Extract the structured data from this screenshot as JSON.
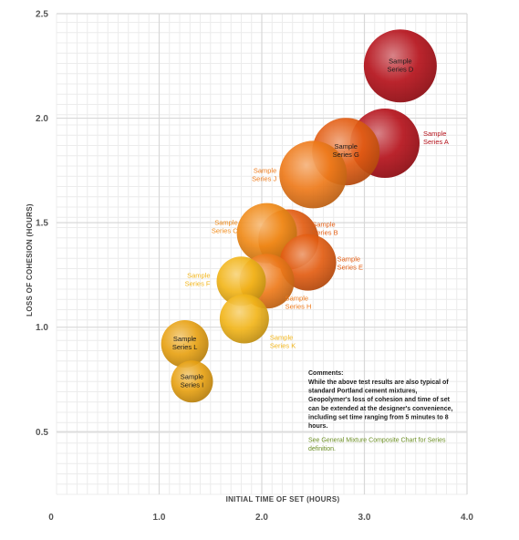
{
  "chart_data": {
    "type": "bubble",
    "xlabel": "INITIAL TIME OF SET (HOURS)",
    "ylabel": "LOSS OF COHESION (HOURS)",
    "xticks": [
      "0",
      "1.0",
      "2.0",
      "3.0",
      "4.0"
    ],
    "yticks": [
      "0.5",
      "1.0",
      "1.5",
      "2.0",
      "2.5"
    ],
    "xlim": [
      0,
      4
    ],
    "ylim": [
      0.2,
      2.5
    ],
    "grid": true,
    "series": [
      {
        "label": "Sample Series D",
        "x": 3.35,
        "y": 2.25,
        "size": 40,
        "color": "#b5121b",
        "label_inside": true
      },
      {
        "label": "Sample Series A",
        "x": 3.2,
        "y": 1.88,
        "size": 38,
        "color": "#b5121b",
        "label_inside": false
      },
      {
        "label": "Sample Series G",
        "x": 2.82,
        "y": 1.84,
        "size": 37,
        "color": "#e35d12",
        "label_inside": true
      },
      {
        "label": "Sample Series J",
        "x": 2.5,
        "y": 1.73,
        "size": 37,
        "color": "#ee7a1a",
        "label_inside": false
      },
      {
        "label": "Sample Series B",
        "x": 2.26,
        "y": 1.42,
        "size": 33,
        "color": "#e35d12",
        "label_inside": false
      },
      {
        "label": "Sample Series C",
        "x": 2.05,
        "y": 1.45,
        "size": 33,
        "color": "#f08a18",
        "label_inside": false
      },
      {
        "label": "Sample Series E",
        "x": 2.45,
        "y": 1.31,
        "size": 31,
        "color": "#e35d12",
        "label_inside": false
      },
      {
        "label": "Sample Series H",
        "x": 2.05,
        "y": 1.22,
        "size": 30,
        "color": "#ee7a1a",
        "label_inside": false
      },
      {
        "label": "Sample Series F",
        "x": 1.8,
        "y": 1.22,
        "size": 27,
        "color": "#f2b51a",
        "label_inside": false
      },
      {
        "label": "Sample Series K",
        "x": 1.83,
        "y": 1.04,
        "size": 27,
        "color": "#f2b51a",
        "label_inside": false
      },
      {
        "label": "Sample Series L",
        "x": 1.25,
        "y": 0.92,
        "size": 26,
        "color": "#e8a214",
        "label_inside": true
      },
      {
        "label": "Sample Series I",
        "x": 1.32,
        "y": 0.74,
        "size": 23,
        "color": "#e8a214",
        "label_inside": true
      }
    ],
    "comments": {
      "title": "Comments:",
      "lines": [
        "While the above test results are also typical of",
        "standard Portland cement mixtures,",
        "Geopolymer's loss of cohesion and time of set",
        "can be extended at the designer's convenience,",
        "including set time ranging from 5 minutes to 8",
        "hours."
      ],
      "link_lines": [
        "See General Mixture Composite Chart for Series",
        "definition."
      ]
    }
  }
}
